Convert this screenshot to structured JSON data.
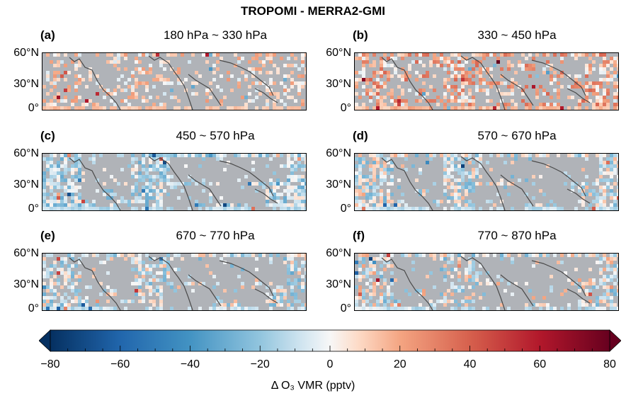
{
  "figure": {
    "title": "TROPOMI - MERRA2-GMI"
  },
  "chart_data": {
    "type": "heatmap",
    "title": "TROPOMI - MERRA2-GMI",
    "panels": [
      {
        "label": "(a)",
        "title": "180 hPa ~ 330 hPa",
        "y_ticks": [
          "60°N",
          "30°N",
          "0°"
        ],
        "coverage": 0.38,
        "bias": 8,
        "spread": 10
      },
      {
        "label": "(b)",
        "title": "330 ~ 450 hPa",
        "y_ticks": [
          "60°N",
          "30°N",
          "0°"
        ],
        "coverage": 0.62,
        "bias": 16,
        "spread": 14
      },
      {
        "label": "(c)",
        "title": "450 ~ 570 hPa",
        "y_ticks": [
          "60°N",
          "30°N",
          "0°"
        ],
        "coverage": 0.78,
        "bias": -12,
        "spread": 12
      },
      {
        "label": "(d)",
        "title": "570 ~ 670 hPa",
        "y_ticks": [
          "60°N",
          "30°N",
          "0°"
        ],
        "coverage": 0.7,
        "bias": -6,
        "spread": 14
      },
      {
        "label": "(e)",
        "title": "670 ~ 770 hPa",
        "y_ticks": [
          "60°N",
          "30°N",
          "0°"
        ],
        "coverage": 0.58,
        "bias": -6,
        "spread": 14
      },
      {
        "label": "(f)",
        "title": "770 ~ 870 hPa",
        "y_ticks": [
          "60°N",
          "30°N",
          "0°"
        ],
        "coverage": 0.58,
        "bias": -4,
        "spread": 16
      }
    ],
    "colorbar": {
      "min": -80,
      "max": 80,
      "ticks": [
        -80,
        -60,
        -40,
        -20,
        0,
        20,
        40,
        60,
        80
      ],
      "tick_labels": [
        "−80",
        "−60",
        "−40",
        "−20",
        "0",
        "20",
        "40",
        "60",
        "80"
      ],
      "label": "Δ O₃ VMR (pptv)",
      "colormap": "RdBu_r",
      "extend": "both"
    },
    "colors": {
      "land": "#b0b3b8",
      "coastline": "#4a4a4a",
      "neutral": "#f2f2f2"
    }
  }
}
